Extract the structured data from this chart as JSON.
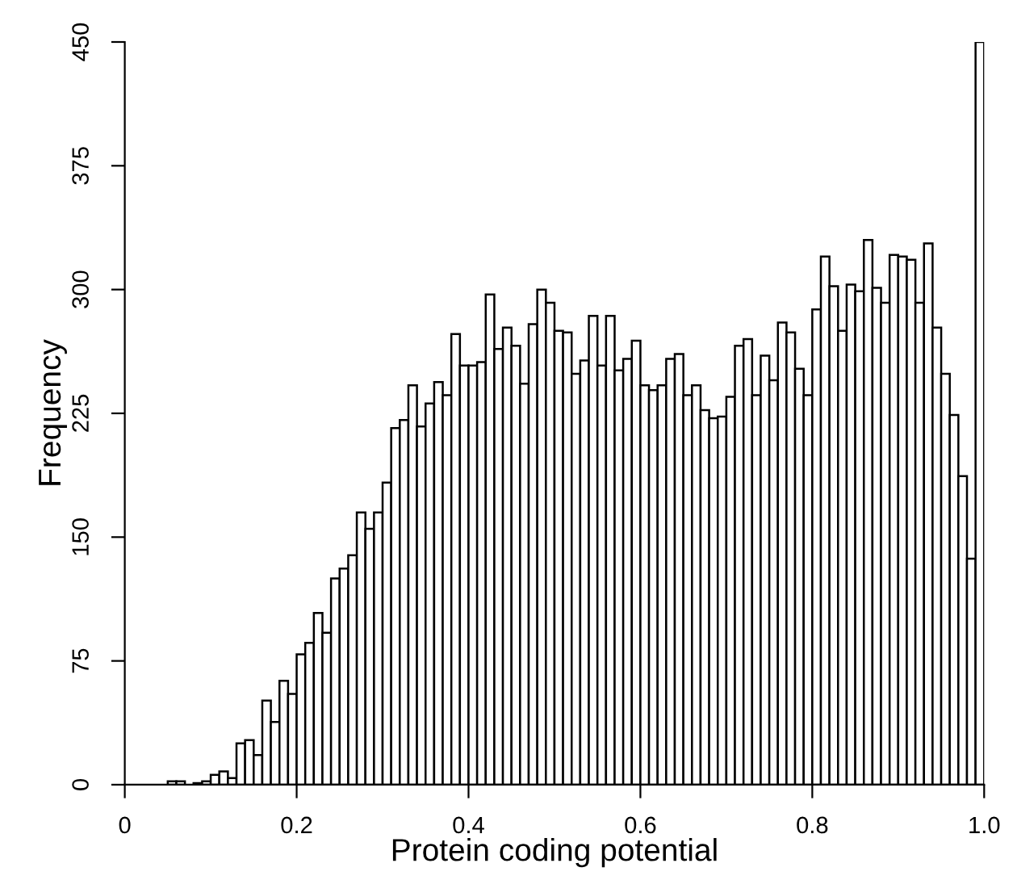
{
  "chart_data": {
    "type": "histogram",
    "xlabel": "Protein coding potential",
    "ylabel": "Frequency",
    "bins": [
      0,
      0.01,
      0.02,
      0.03,
      0.04,
      0.05,
      0.06,
      0.07,
      0.08,
      0.09,
      0.1,
      0.11,
      0.12,
      0.13,
      0.14,
      0.15,
      0.16,
      0.17,
      0.18,
      0.19,
      0.2,
      0.21,
      0.22,
      0.23,
      0.24,
      0.25,
      0.26,
      0.27,
      0.28,
      0.29,
      0.3,
      0.31,
      0.32,
      0.33,
      0.34,
      0.35,
      0.36,
      0.37,
      0.38,
      0.39,
      0.4,
      0.41,
      0.42,
      0.43,
      0.44,
      0.45,
      0.46,
      0.47,
      0.48,
      0.49,
      0.5,
      0.51,
      0.52,
      0.53,
      0.54,
      0.55,
      0.56,
      0.57,
      0.58,
      0.59,
      0.6,
      0.61,
      0.62,
      0.63,
      0.64,
      0.65,
      0.66,
      0.67,
      0.68,
      0.69,
      0.7,
      0.71,
      0.72,
      0.73,
      0.74,
      0.75,
      0.76,
      0.77,
      0.78,
      0.79,
      0.8,
      0.81,
      0.82,
      0.83,
      0.84,
      0.85,
      0.86,
      0.87,
      0.88,
      0.89,
      0.9,
      0.91,
      0.92,
      0.93,
      0.94,
      0.95,
      0.96,
      0.97,
      0.98,
      0.99,
      1.0
    ],
    "values": [
      0,
      0,
      0,
      0,
      0,
      2,
      2,
      0,
      1,
      2,
      6,
      8,
      4,
      25,
      27,
      18,
      51,
      38,
      63,
      55,
      79,
      86,
      104,
      92,
      125,
      131,
      139,
      165,
      155,
      165,
      183,
      216,
      221,
      242,
      217,
      231,
      244,
      236,
      273,
      254,
      254,
      256,
      297,
      264,
      277,
      266,
      243,
      279,
      300,
      292,
      275,
      274,
      249,
      257,
      284,
      254,
      284,
      251,
      258,
      269,
      242,
      239,
      242,
      258,
      261,
      236,
      242,
      227,
      222,
      223,
      235,
      266,
      270,
      236,
      260,
      245,
      280,
      274,
      252,
      236,
      288,
      320,
      302,
      275,
      303,
      299,
      330,
      301,
      292,
      321,
      320,
      318,
      292,
      328,
      277,
      249,
      224,
      187,
      137,
      450
    ],
    "color": "#ffffff",
    "xlim": [
      0,
      1
    ],
    "ylim": [
      0,
      450
    ],
    "xticks": [
      0,
      {
        "value": 0.2,
        "label": "0.2"
      },
      {
        "value": 0.4,
        "label": "0.4"
      },
      {
        "value": 0.6,
        "label": "0.6"
      },
      {
        "value": 0.8,
        "label": "0.8"
      },
      {
        "value": 1.0,
        "label": "1.0"
      }
    ],
    "yticks": [
      0,
      75,
      150,
      225,
      300,
      375,
      450
    ]
  }
}
